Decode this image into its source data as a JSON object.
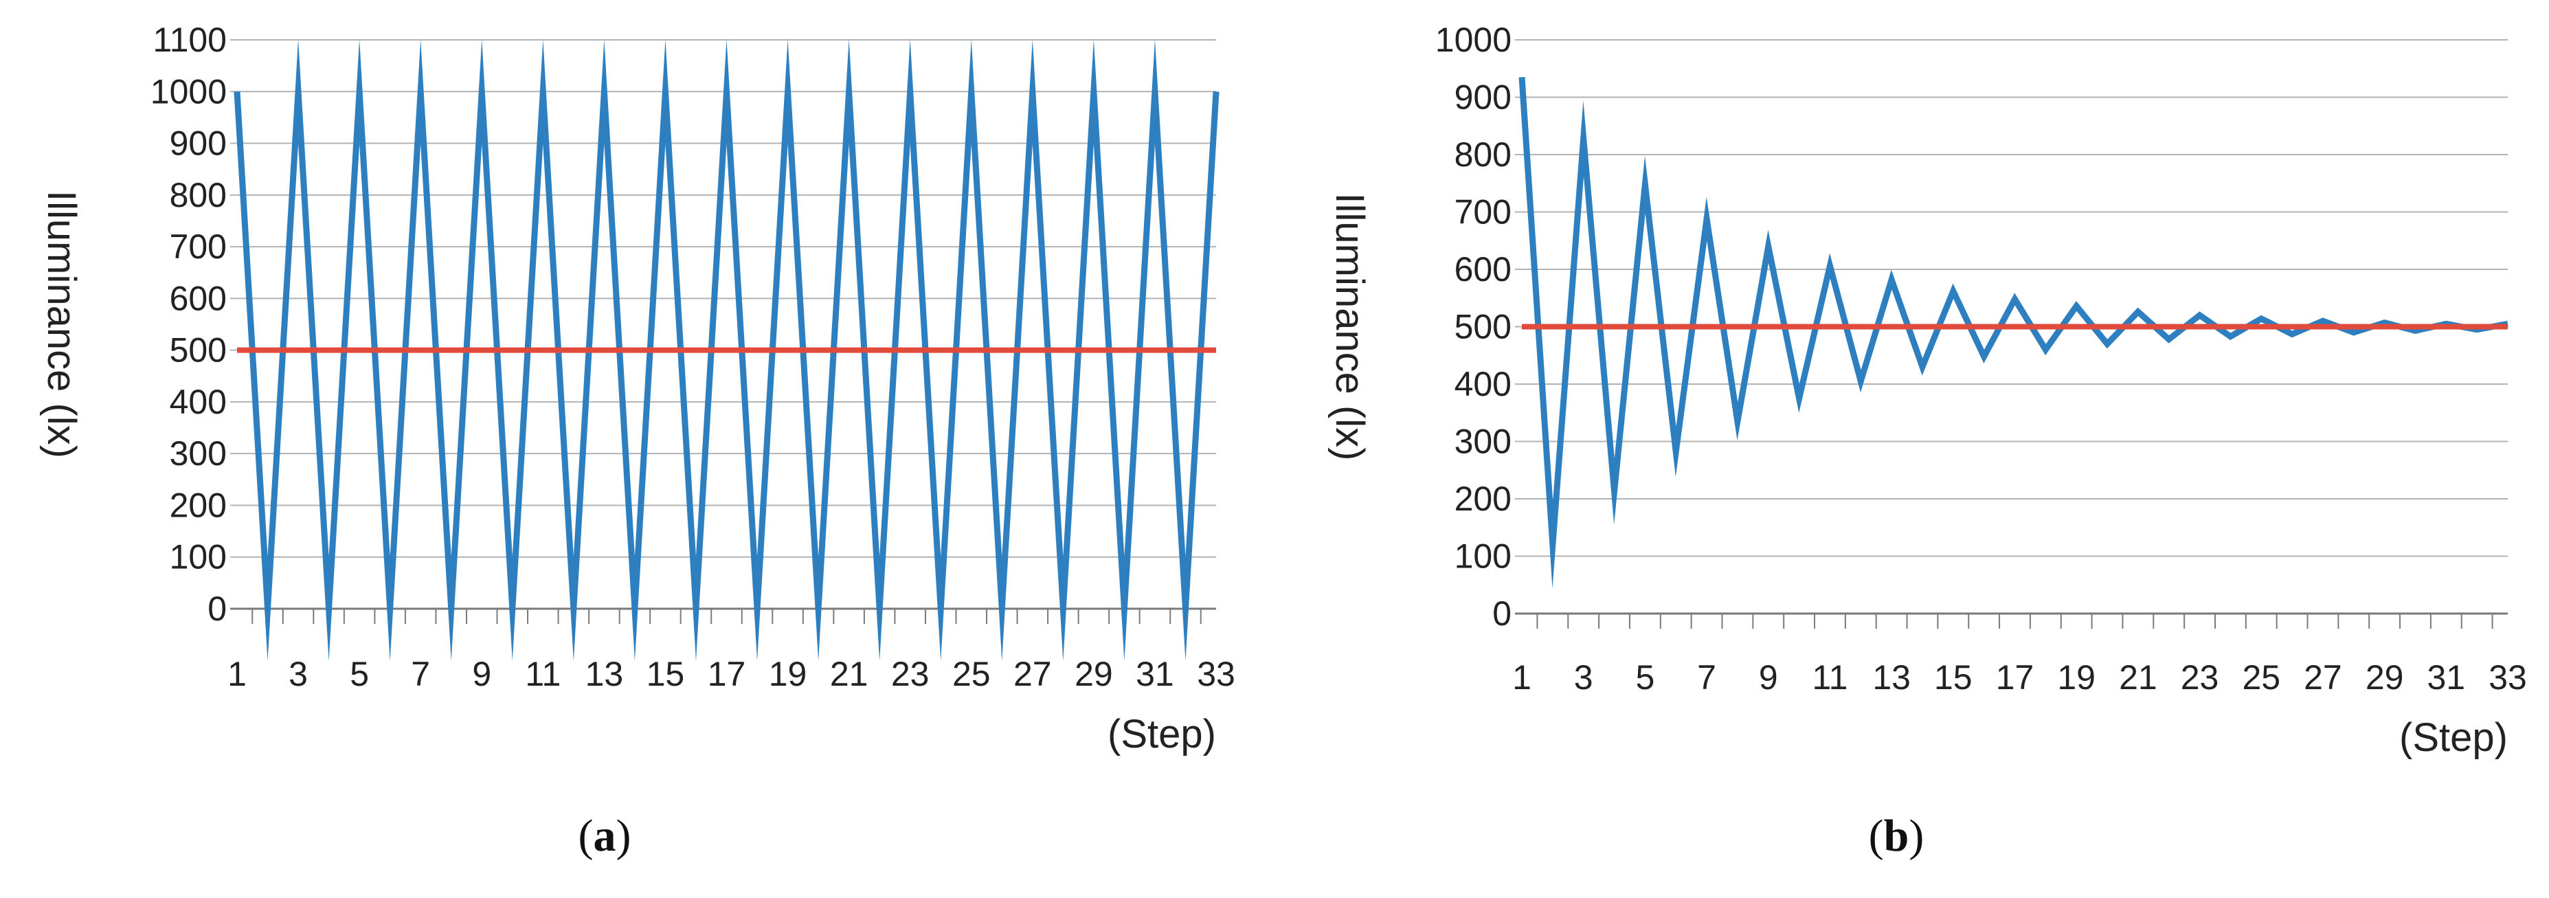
{
  "chart_data": [
    {
      "type": "line",
      "panel_label": "a",
      "ylabel": "Illuminance  (lx)",
      "xlabel": "(Step)",
      "ylim": [
        0,
        1100
      ],
      "yticks": [
        0,
        100,
        200,
        300,
        400,
        500,
        600,
        700,
        800,
        900,
        1000,
        1100
      ],
      "x": [
        1,
        2,
        3,
        4,
        5,
        6,
        7,
        8,
        9,
        10,
        11,
        12,
        13,
        14,
        15,
        16,
        17,
        18,
        19,
        20,
        21,
        22,
        23,
        24,
        25,
        26,
        27,
        28,
        29,
        30,
        31,
        32,
        33
      ],
      "xticks": [
        1,
        3,
        5,
        7,
        9,
        11,
        13,
        15,
        17,
        19,
        21,
        23,
        25,
        27,
        29,
        31,
        33
      ],
      "grid": true,
      "series": [
        {
          "color": "#2e7fc0",
          "values": [
            1000,
            0,
            1000,
            0,
            1000,
            0,
            1000,
            0,
            1000,
            0,
            1000,
            0,
            1000,
            0,
            1000,
            0,
            1000,
            0,
            1000,
            0,
            1000,
            0,
            1000,
            0,
            1000,
            0,
            1000,
            0,
            1000,
            0,
            1000,
            0,
            1000
          ]
        },
        {
          "color": "#e04b3c",
          "values": [
            500,
            500,
            500,
            500,
            500,
            500,
            500,
            500,
            500,
            500,
            500,
            500,
            500,
            500,
            500,
            500,
            500,
            500,
            500,
            500,
            500,
            500,
            500,
            500,
            500,
            500,
            500,
            500,
            500,
            500,
            500,
            500,
            500
          ]
        }
      ]
    },
    {
      "type": "line",
      "panel_label": "b",
      "ylabel": "Illuminance  (lx)",
      "xlabel": "(Step)",
      "ylim": [
        0,
        1000
      ],
      "yticks": [
        0,
        100,
        200,
        300,
        400,
        500,
        600,
        700,
        800,
        900,
        1000
      ],
      "x": [
        1,
        2,
        3,
        4,
        5,
        6,
        7,
        8,
        9,
        10,
        11,
        12,
        13,
        14,
        15,
        16,
        17,
        18,
        19,
        20,
        21,
        22,
        23,
        24,
        25,
        26,
        27,
        28,
        29,
        30,
        31,
        32,
        33
      ],
      "xticks": [
        1,
        3,
        5,
        7,
        9,
        11,
        13,
        15,
        17,
        19,
        21,
        23,
        25,
        27,
        29,
        31,
        33
      ],
      "grid": true,
      "series": [
        {
          "color": "#2e7fc0",
          "values": [
            935,
            120,
            828,
            213,
            748,
            282,
            688,
            335,
            640,
            375,
            606,
            405,
            582,
            430,
            562,
            448,
            548,
            460,
            536,
            470,
            526,
            478,
            520,
            483,
            514,
            487,
            510,
            490,
            507,
            493,
            505,
            495,
            505
          ]
        },
        {
          "color": "#e04b3c",
          "values": [
            500,
            500,
            500,
            500,
            500,
            500,
            500,
            500,
            500,
            500,
            500,
            500,
            500,
            500,
            500,
            500,
            500,
            500,
            500,
            500,
            500,
            500,
            500,
            500,
            500,
            500,
            500,
            500,
            500,
            500,
            500,
            500,
            500
          ]
        }
      ]
    }
  ]
}
